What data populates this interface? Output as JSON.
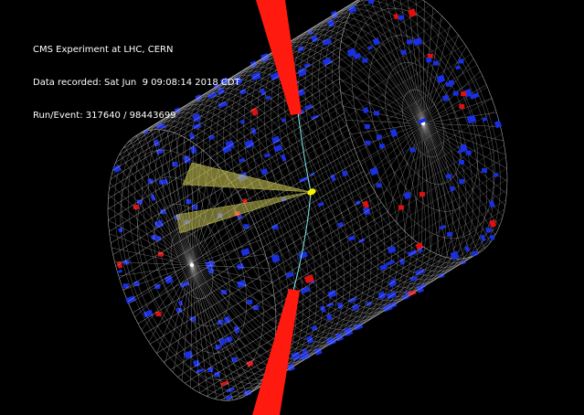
{
  "header": {
    "experiment": "CMS Experiment at LHC, CERN",
    "data_recorded": "Data recorded: Sat Jun  9 09:08:14 2018 CDT",
    "run_event": "Run/Event: 317640 / 98443699"
  },
  "colors": {
    "background": "#000000",
    "mesh": "#c8c8c8",
    "hadronic_deposit": "#1a2fe0",
    "electromagnetic_deposit": "#e01010",
    "forward_energy": "#ff1a10",
    "jet_cone": "#d8d45a",
    "track": "#7fe9f0",
    "vertex": "#f4f000",
    "text": "#ffffff"
  },
  "icons": {
    "detector": "cms-detector-cylinder-icon",
    "vertex": "interaction-vertex-icon"
  }
}
